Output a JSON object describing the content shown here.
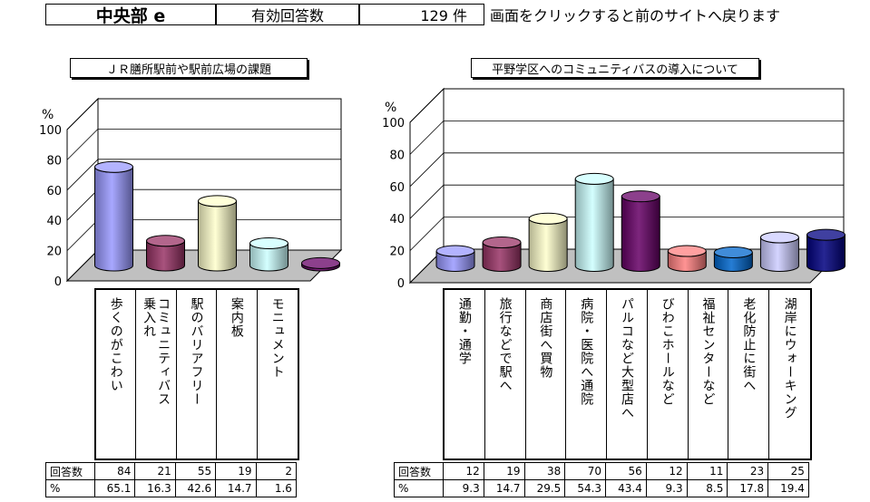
{
  "header": {
    "region": "中央部 e",
    "responses_label": "有効回答数",
    "responses_count": "129 件",
    "note": "画面をクリックすると前のサイトへ戻ります"
  },
  "colors": {
    "bars": [
      "#9999ff",
      "#993366",
      "#ffffcc",
      "#ccffff",
      "#660066",
      "#ff8080",
      "#0066cc",
      "#ccccff",
      "#000080"
    ],
    "floor": "#c0c0c0"
  },
  "table_labels": {
    "count": "回答数",
    "percent": "%"
  },
  "chart_data": [
    {
      "type": "bar",
      "title": "ＪＲ膳所駅前や駅前広場の課題",
      "ylabel": "%",
      "ylim": [
        0,
        100
      ],
      "yticks": [
        "0",
        "20",
        "40",
        "60",
        "80",
        "100"
      ],
      "categories": [
        "歩くのがこわい",
        "コミュニティバス\n乗入れ",
        "駅のバリアフリー",
        "案内板",
        "モニュメント"
      ],
      "counts": [
        "84",
        "21",
        "55",
        "19",
        "2"
      ],
      "percents": [
        "65.1",
        "16.3",
        "42.6",
        "14.7",
        "1.6"
      ],
      "values": [
        65.1,
        16.3,
        42.6,
        14.7,
        1.6
      ]
    },
    {
      "type": "bar",
      "title": "平野学区へのコミュニティバスの導入について",
      "ylabel": "%",
      "ylim": [
        0,
        100
      ],
      "yticks": [
        "0",
        "20",
        "40",
        "60",
        "80",
        "100"
      ],
      "categories": [
        "通勤・通学",
        "旅行などで駅へ",
        "商店街へ買物",
        "病院・医院へ通院",
        "パルコなど大型店へ",
        "びわこホールなど",
        "福祉センターなど",
        "老化防止に街へ",
        "湖岸にウォーキング"
      ],
      "counts": [
        "12",
        "19",
        "38",
        "70",
        "56",
        "12",
        "11",
        "23",
        "25"
      ],
      "percents": [
        "9.3",
        "14.7",
        "29.5",
        "54.3",
        "43.4",
        "9.3",
        "8.5",
        "17.8",
        "19.4"
      ],
      "values": [
        9.3,
        14.7,
        29.5,
        54.3,
        43.4,
        9.3,
        8.5,
        17.8,
        19.4
      ]
    }
  ]
}
